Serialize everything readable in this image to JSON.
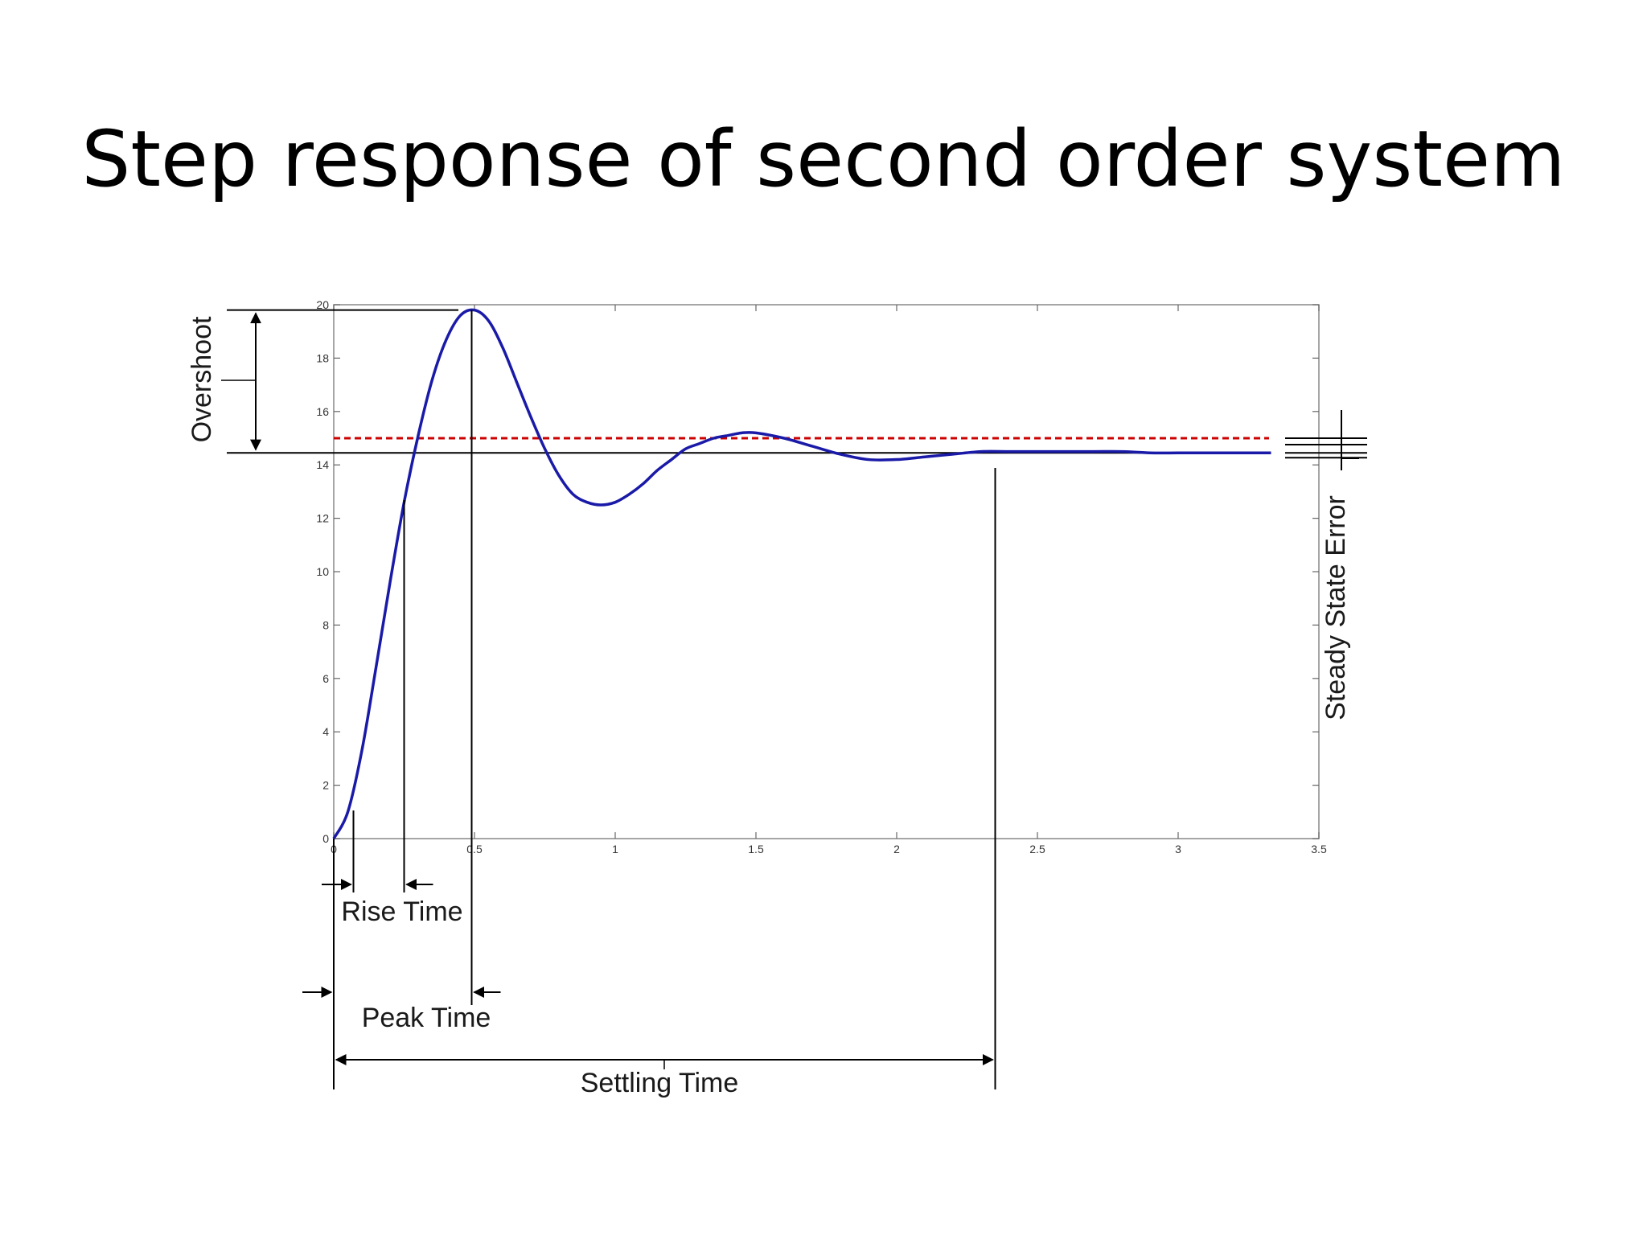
{
  "slide": {
    "title": "Step response of second order system"
  },
  "chart_data": {
    "type": "line",
    "title": "",
    "xlabel": "",
    "ylabel": "",
    "xlim": [
      0,
      3.5
    ],
    "ylim": [
      0,
      20
    ],
    "x_ticks": [
      "0",
      "0.5",
      "1",
      "1.5",
      "2",
      "2.5",
      "3",
      "3.5"
    ],
    "y_ticks": [
      "0",
      "2",
      "4",
      "6",
      "8",
      "10",
      "12",
      "14",
      "16",
      "18",
      "20"
    ],
    "grid": false,
    "series": [
      {
        "name": "",
        "color": "#1a1aa8",
        "x": [
          0,
          0.05,
          0.1,
          0.15,
          0.2,
          0.25,
          0.3,
          0.35,
          0.4,
          0.45,
          0.5,
          0.55,
          0.6,
          0.65,
          0.7,
          0.75,
          0.8,
          0.85,
          0.9,
          0.95,
          1.0,
          1.05,
          1.1,
          1.15,
          1.2,
          1.25,
          1.3,
          1.35,
          1.4,
          1.45,
          1.5,
          1.6,
          1.7,
          1.8,
          1.9,
          2.0,
          2.1,
          2.2,
          2.3,
          2.4,
          2.5,
          2.6,
          2.7,
          2.8,
          2.9,
          3.0,
          3.1,
          3.2,
          3.33
        ],
        "y": [
          0,
          1.0,
          3.3,
          6.4,
          9.6,
          12.6,
          15.1,
          17.2,
          18.7,
          19.6,
          19.8,
          19.4,
          18.4,
          17.1,
          15.8,
          14.6,
          13.6,
          12.9,
          12.6,
          12.5,
          12.6,
          12.9,
          13.3,
          13.8,
          14.2,
          14.6,
          14.8,
          15.0,
          15.1,
          15.2,
          15.2,
          15.0,
          14.7,
          14.4,
          14.2,
          14.2,
          14.3,
          14.4,
          14.5,
          14.5,
          14.5,
          14.5,
          14.5,
          14.5,
          14.45,
          14.45,
          14.45,
          14.45,
          14.45
        ]
      }
    ],
    "reference_lines": [
      {
        "kind": "setpoint",
        "y": 15.0,
        "color": "#cc0000",
        "dashed": true
      },
      {
        "kind": "final-value",
        "y": 14.45,
        "color": "#000000",
        "dashed": false
      }
    ],
    "annotations": {
      "overshoot": "Overshoot",
      "rise_time": "Rise Time",
      "peak_time": "Peak Time",
      "settling_time": "Settling Time",
      "steady_state_error": "Steady State Error"
    },
    "markers": {
      "rise_start_x": 0.07,
      "rise_end_x": 0.25,
      "peak_x": 0.49,
      "peak_y": 19.8,
      "settling_x": 2.35
    }
  }
}
